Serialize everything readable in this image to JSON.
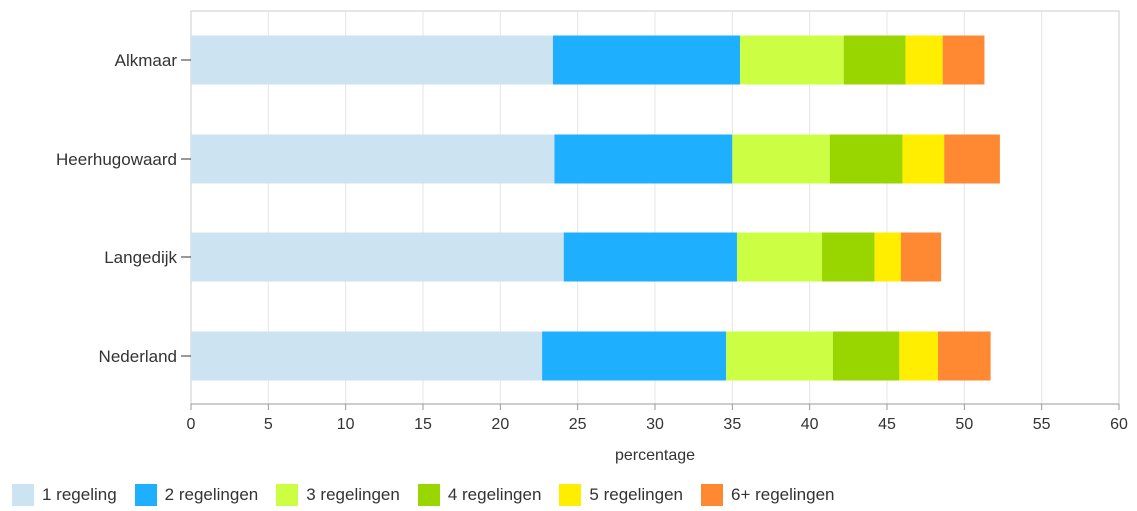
{
  "chart_data": {
    "type": "bar",
    "orientation": "horizontal",
    "stacked": true,
    "categories": [
      "Alkmaar",
      "Heerhugowaard",
      "Langedijk",
      "Nederland"
    ],
    "highlighted_category": "Langedijk",
    "series": [
      {
        "name": "1 regeling",
        "color": "#cce3f1",
        "values": [
          23.4,
          23.5,
          24.1,
          22.7
        ]
      },
      {
        "name": "2 regelingen",
        "color": "#1eb0ff",
        "values": [
          12.1,
          11.5,
          11.2,
          11.9
        ]
      },
      {
        "name": "3 regelingen",
        "color": "#ccff44",
        "values": [
          6.7,
          6.3,
          5.5,
          6.9
        ]
      },
      {
        "name": "4 regelingen",
        "color": "#99d600",
        "values": [
          4.0,
          4.7,
          3.4,
          4.3
        ]
      },
      {
        "name": "5 regelingen",
        "color": "#ffee00",
        "values": [
          2.4,
          2.7,
          1.7,
          2.5
        ]
      },
      {
        "name": "6+ regelingen",
        "color": "#ff8833",
        "values": [
          2.7,
          3.6,
          2.6,
          3.4
        ]
      }
    ],
    "xlabel": "percentage",
    "xlim": [
      0,
      60
    ],
    "xticks": [
      0,
      5,
      10,
      15,
      20,
      25,
      30,
      35,
      40,
      45,
      50,
      55,
      60
    ],
    "grid": true,
    "legend_position": "bottom-left",
    "colors": {
      "label": "#333333",
      "highlight": "#0077cc",
      "grid": "#e5e5e5",
      "axis": "#999999"
    }
  }
}
